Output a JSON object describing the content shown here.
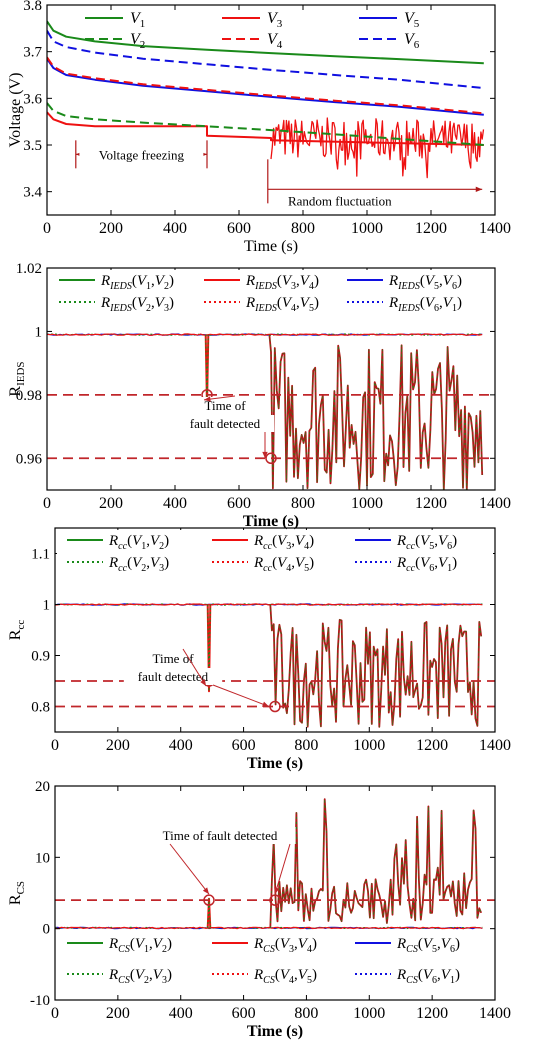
{
  "colors": {
    "green": "#1a8a1a",
    "red": "#ee1111",
    "blue": "#1010e0",
    "darkred": "#b01818",
    "fault_red": "#c0262a"
  },
  "chart_data": [
    {
      "id": "voltage",
      "type": "line",
      "title": "",
      "xlabel": "Time (s)",
      "ylabel": "Voltage (V)",
      "xlim": [
        0,
        1400
      ],
      "ylim": [
        3.35,
        3.8
      ],
      "xticks": [
        0,
        200,
        400,
        600,
        800,
        1000,
        1200,
        1400
      ],
      "yticks": [
        3.4,
        3.5,
        3.6,
        3.7,
        3.8
      ],
      "grid": false,
      "legend": "top, two rows inside plot",
      "series": [
        {
          "name": "V1",
          "style": "solid",
          "color": "green",
          "x": [
            0,
            20,
            60,
            150,
            300,
            500,
            700,
            900,
            1100,
            1365
          ],
          "y": [
            3.765,
            3.745,
            3.732,
            3.722,
            3.712,
            3.704,
            3.697,
            3.69,
            3.684,
            3.675
          ]
        },
        {
          "name": "V3",
          "style": "solid",
          "color": "red",
          "x": [
            0,
            20,
            60,
            150,
            300,
            500,
            500,
            700,
            700,
            1365
          ],
          "y": [
            3.57,
            3.555,
            3.545,
            3.54,
            3.54,
            3.54,
            3.52,
            3.515,
            3.51,
            3.5
          ],
          "noise_after": 700,
          "noise_range": [
            3.43,
            3.56
          ]
        },
        {
          "name": "V5",
          "style": "solid",
          "color": "blue",
          "x": [
            0,
            20,
            60,
            150,
            300,
            500,
            700,
            900,
            1100,
            1365
          ],
          "y": [
            3.685,
            3.665,
            3.65,
            3.64,
            3.627,
            3.615,
            3.603,
            3.592,
            3.582,
            3.565
          ]
        },
        {
          "name": "V2",
          "style": "dashed",
          "color": "green",
          "x": [
            0,
            20,
            60,
            150,
            300,
            500,
            700,
            900,
            1100,
            1365
          ],
          "y": [
            3.59,
            3.573,
            3.562,
            3.555,
            3.548,
            3.54,
            3.532,
            3.523,
            3.513,
            3.5
          ]
        },
        {
          "name": "V4",
          "style": "dashed",
          "color": "red",
          "x": [
            0,
            20,
            60,
            150,
            300,
            500,
            700,
            900,
            1100,
            1365
          ],
          "y": [
            3.688,
            3.668,
            3.653,
            3.643,
            3.63,
            3.618,
            3.606,
            3.595,
            3.585,
            3.568
          ]
        },
        {
          "name": "V6",
          "style": "dashed",
          "color": "blue",
          "x": [
            0,
            20,
            60,
            150,
            300,
            500,
            700,
            900,
            1100,
            1365
          ],
          "y": [
            3.745,
            3.722,
            3.71,
            3.698,
            3.685,
            3.673,
            3.661,
            3.65,
            3.64,
            3.622
          ]
        }
      ],
      "annotations": [
        {
          "text": "Voltage freezing",
          "x_from": 90,
          "x_to": 500,
          "y": 3.48
        },
        {
          "text": "Random fluctuation",
          "x_from": 690,
          "x_to": 1360,
          "y": 3.405
        }
      ],
      "legend_labels": [
        {
          "main": "V",
          "sub": "1"
        },
        {
          "main": "V",
          "sub": "3"
        },
        {
          "main": "V",
          "sub": "5"
        },
        {
          "main": "V",
          "sub": "2"
        },
        {
          "main": "V",
          "sub": "4"
        },
        {
          "main": "V",
          "sub": "6"
        }
      ]
    },
    {
      "id": "rieds",
      "type": "line",
      "xlabel": "Time (s)",
      "ylabel_main": "R",
      "ylabel_sub": "IEDS",
      "xlim": [
        0,
        1400
      ],
      "ylim": [
        0.95,
        1.02
      ],
      "xticks": [
        0,
        200,
        400,
        600,
        800,
        1000,
        1200,
        1400
      ],
      "yticks": [
        0.96,
        0.98,
        1,
        1.02
      ],
      "ytick_labels": [
        "0.96",
        "0.98",
        "1",
        "1.02"
      ],
      "grid": false,
      "baseline": 0.999,
      "thresholds": [
        0.98,
        0.96
      ],
      "fault_points": [
        {
          "x": 500,
          "y": 0.98
        },
        {
          "x": 700,
          "y": 0.96
        }
      ],
      "spike": {
        "x": 500,
        "min": 0.976
      },
      "noise_after": 700,
      "noise_range": [
        0.95,
        0.997
      ],
      "annotation": "Time of\nfault detected",
      "legend_labels": [
        {
          "main": "R",
          "sub": "IEDS",
          "args": [
            "V1",
            "V2"
          ],
          "style": "solid",
          "color": "green"
        },
        {
          "main": "R",
          "sub": "IEDS",
          "args": [
            "V3",
            "V4"
          ],
          "style": "solid",
          "color": "red"
        },
        {
          "main": "R",
          "sub": "IEDS",
          "args": [
            "V5",
            "V6"
          ],
          "style": "solid",
          "color": "blue"
        },
        {
          "main": "R",
          "sub": "IEDS",
          "args": [
            "V2",
            "V3"
          ],
          "style": "dotted",
          "color": "green"
        },
        {
          "main": "R",
          "sub": "IEDS",
          "args": [
            "V4",
            "V5"
          ],
          "style": "dotted",
          "color": "red"
        },
        {
          "main": "R",
          "sub": "IEDS",
          "args": [
            "V6",
            "V1"
          ],
          "style": "dotted",
          "color": "blue"
        }
      ]
    },
    {
      "id": "rcc",
      "type": "line",
      "xlabel": "Time (s)",
      "ylabel_main": "R",
      "ylabel_sub": "cc",
      "xlim": [
        0,
        1400
      ],
      "ylim": [
        0.75,
        1.15
      ],
      "xticks": [
        0,
        200,
        400,
        600,
        800,
        1000,
        1200,
        1400
      ],
      "yticks": [
        0.8,
        0.9,
        1,
        1.1
      ],
      "ytick_labels": [
        "0.8",
        "0.9",
        "1",
        "1.1"
      ],
      "grid": false,
      "baseline": 1.0,
      "thresholds": [
        0.85,
        0.8
      ],
      "fault_points": [
        {
          "x": 490,
          "y": 0.85
        },
        {
          "x": 700,
          "y": 0.8
        }
      ],
      "spike": {
        "x": 490,
        "min": 0.83
      },
      "noise_after": 690,
      "noise_range": [
        0.76,
        0.97
      ],
      "annotation": "Time of\nfault detected",
      "legend_labels": [
        {
          "main": "R",
          "sub": "cc",
          "args": [
            "V1",
            "V2"
          ],
          "style": "solid",
          "color": "green"
        },
        {
          "main": "R",
          "sub": "cc",
          "args": [
            "V3",
            "V4"
          ],
          "style": "solid",
          "color": "red"
        },
        {
          "main": "R",
          "sub": "cc",
          "args": [
            "V5",
            "V6"
          ],
          "style": "solid",
          "color": "blue"
        },
        {
          "main": "R",
          "sub": "cc",
          "args": [
            "V2",
            "V3"
          ],
          "style": "dotted",
          "color": "green"
        },
        {
          "main": "R",
          "sub": "cc",
          "args": [
            "V4",
            "V5"
          ],
          "style": "dotted",
          "color": "red"
        },
        {
          "main": "R",
          "sub": "cc",
          "args": [
            "V6",
            "V1"
          ],
          "style": "dotted",
          "color": "blue"
        }
      ]
    },
    {
      "id": "rcs",
      "type": "line",
      "xlabel": "Time (s)",
      "ylabel_main": "R",
      "ylabel_sub": "CS",
      "xlim": [
        0,
        1400
      ],
      "ylim": [
        -10,
        20
      ],
      "xticks": [
        0,
        200,
        400,
        600,
        800,
        1000,
        1200,
        1400
      ],
      "yticks": [
        -10,
        0,
        10,
        20
      ],
      "ytick_labels": [
        "-10",
        "0",
        "10",
        "20"
      ],
      "grid": false,
      "baseline": 0.1,
      "thresholds": [
        4
      ],
      "fault_points": [
        {
          "x": 490,
          "y": 4
        },
        {
          "x": 700,
          "y": 4
        }
      ],
      "spike": {
        "x": 490,
        "max": 4.2
      },
      "noise_after": 690,
      "noise_range": [
        0.5,
        20
      ],
      "annotation": "Time of fault detected",
      "legend_labels": [
        {
          "main": "R",
          "sub": "CS",
          "args": [
            "V1",
            "V2"
          ],
          "style": "solid",
          "color": "green"
        },
        {
          "main": "R",
          "sub": "CS",
          "args": [
            "V3",
            "V4"
          ],
          "style": "solid",
          "color": "red"
        },
        {
          "main": "R",
          "sub": "CS",
          "args": [
            "V5",
            "V6"
          ],
          "style": "solid",
          "color": "blue"
        },
        {
          "main": "R",
          "sub": "CS",
          "args": [
            "V2",
            "V3"
          ],
          "style": "dotted",
          "color": "green"
        },
        {
          "main": "R",
          "sub": "CS",
          "args": [
            "V4",
            "V5"
          ],
          "style": "dotted",
          "color": "red"
        },
        {
          "main": "R",
          "sub": "CS",
          "args": [
            "V6",
            "V1"
          ],
          "style": "dotted",
          "color": "blue"
        }
      ]
    }
  ]
}
